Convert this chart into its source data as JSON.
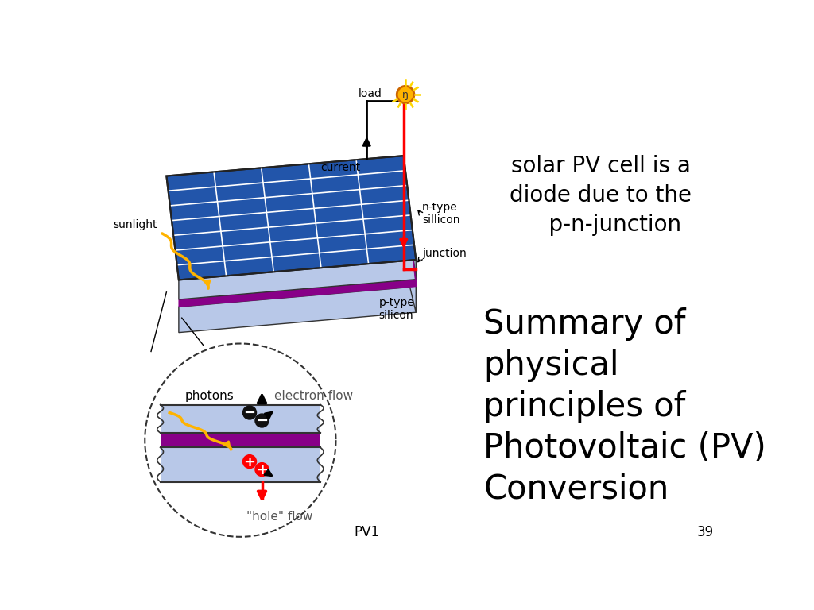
{
  "background_color": "#ffffff",
  "title_text": "solar PV cell is a\ndiode due to the\n    p-n-junction",
  "summary_text": "Summary of\nphysical\nprinciples of\nPhotovoltaic (PV)\nConversion",
  "page_number": "39",
  "slide_label": "PV1",
  "title_fontsize": 20,
  "summary_fontsize": 30,
  "small_fontsize": 11,
  "label_fontsize": 10,
  "panel_blue": "#2255aa",
  "panel_blue_dark": "#1a3f80",
  "panel_cell_light": "#4477cc",
  "n_silicon_color": "#b8c8e8",
  "p_silicon_color": "#b8c8e8",
  "junction_color": "#880088",
  "circle_bg": "#ffffff"
}
